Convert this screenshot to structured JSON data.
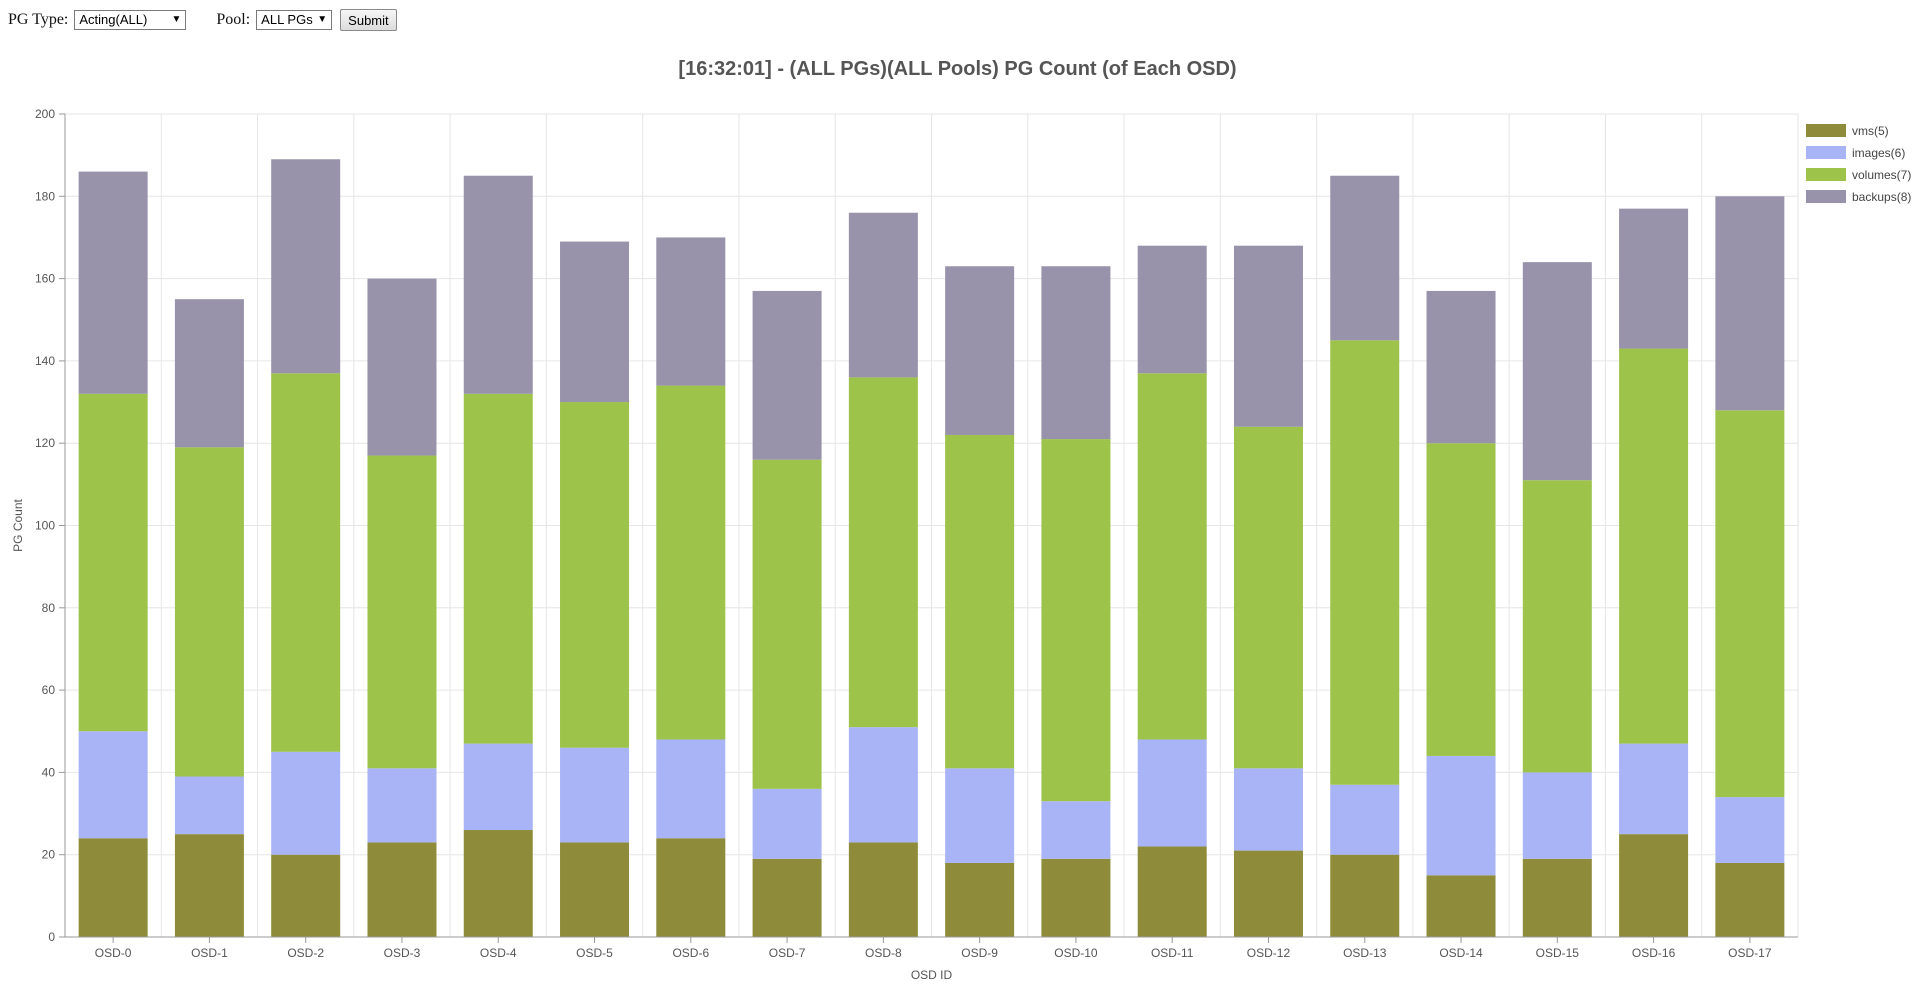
{
  "toolbar": {
    "pg_type_label": "PG Type:",
    "pg_type_value": "Acting(ALL)",
    "pool_label": "Pool:",
    "pool_value": "ALL PGs",
    "submit_label": "Submit"
  },
  "chart_data": {
    "type": "bar",
    "stacked": true,
    "title": "[16:32:01] - (ALL PGs)(ALL Pools) PG Count (of Each OSD)",
    "xlabel": "OSD ID",
    "ylabel": "PG Count",
    "ylim": [
      0,
      200
    ],
    "yticks": [
      0,
      20,
      40,
      60,
      80,
      100,
      120,
      140,
      160,
      180,
      200
    ],
    "grid": true,
    "legend_position": "top-right",
    "categories": [
      "OSD-0",
      "OSD-1",
      "OSD-2",
      "OSD-3",
      "OSD-4",
      "OSD-5",
      "OSD-6",
      "OSD-7",
      "OSD-8",
      "OSD-9",
      "OSD-10",
      "OSD-11",
      "OSD-12",
      "OSD-13",
      "OSD-14",
      "OSD-15",
      "OSD-16",
      "OSD-17"
    ],
    "series": [
      {
        "name": "vms(5)",
        "color": "#8e8c3a",
        "values": [
          24,
          25,
          20,
          23,
          26,
          23,
          24,
          19,
          23,
          18,
          19,
          22,
          21,
          20,
          15,
          19,
          25,
          18
        ]
      },
      {
        "name": "images(6)",
        "color": "#a9b4f6",
        "values": [
          26,
          14,
          25,
          18,
          21,
          23,
          24,
          17,
          28,
          23,
          14,
          26,
          20,
          17,
          29,
          21,
          22,
          16
        ]
      },
      {
        "name": "volumes(7)",
        "color": "#9dc34a",
        "values": [
          82,
          80,
          92,
          76,
          85,
          84,
          86,
          80,
          85,
          81,
          88,
          89,
          83,
          108,
          76,
          71,
          96,
          94
        ]
      },
      {
        "name": "backups(8)",
        "color": "#9892ab",
        "values": [
          54,
          36,
          52,
          43,
          53,
          39,
          36,
          41,
          40,
          41,
          42,
          31,
          44,
          40,
          37,
          53,
          34,
          52
        ]
      }
    ]
  }
}
